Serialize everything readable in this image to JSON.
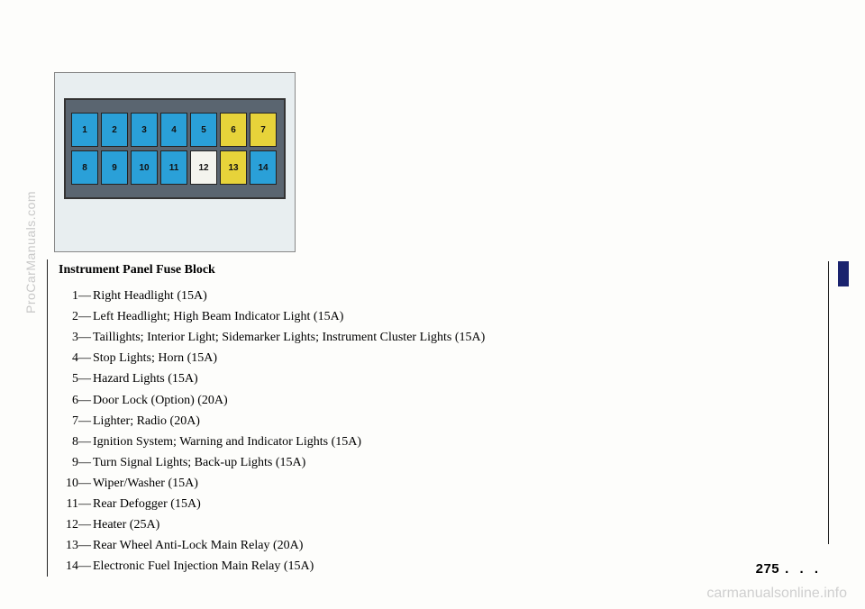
{
  "watermarks": {
    "left": "ProCarManuals.com",
    "bottom": "carmanualsonline.info"
  },
  "pageNumber": "275",
  "pageDots": ". . .",
  "heading": "Instrument Panel Fuse Block",
  "fuses": [
    {
      "n": "1",
      "desc": "Right Headlight (15A)"
    },
    {
      "n": "2",
      "desc": "Left Headlight; High Beam Indicator Light (15A)"
    },
    {
      "n": "3",
      "desc": "Taillights; Interior Light; Sidemarker Lights; Instrument Cluster Lights (15A)"
    },
    {
      "n": "4",
      "desc": "Stop Lights; Horn (15A)"
    },
    {
      "n": "5",
      "desc": "Hazard Lights (15A)"
    },
    {
      "n": "6",
      "desc": "Door Lock (Option) (20A)"
    },
    {
      "n": "7",
      "desc": "Lighter; Radio (20A)"
    },
    {
      "n": "8",
      "desc": "Ignition System; Warning and Indicator Lights (15A)"
    },
    {
      "n": "9",
      "desc": "Turn Signal Lights; Back-up Lights (15A)"
    },
    {
      "n": "10",
      "desc": "Wiper/Washer (15A)"
    },
    {
      "n": "11",
      "desc": "Rear Defogger (15A)"
    },
    {
      "n": "12",
      "desc": "Heater (25A)"
    },
    {
      "n": "13",
      "desc": "Rear Wheel Anti-Lock Main Relay (20A)"
    },
    {
      "n": "14",
      "desc": "Electronic Fuel Injection Main Relay (15A)"
    }
  ],
  "diagram": {
    "rows": [
      [
        {
          "label": "1",
          "color": "#2aa0d8"
        },
        {
          "label": "2",
          "color": "#2aa0d8"
        },
        {
          "label": "3",
          "color": "#2aa0d8"
        },
        {
          "label": "4",
          "color": "#2aa0d8"
        },
        {
          "label": "5",
          "color": "#2aa0d8"
        },
        {
          "label": "6",
          "color": "#e7d33a"
        },
        {
          "label": "7",
          "color": "#e7d33a"
        }
      ],
      [
        {
          "label": "8",
          "color": "#2aa0d8"
        },
        {
          "label": "9",
          "color": "#2aa0d8"
        },
        {
          "label": "10",
          "color": "#2aa0d8"
        },
        {
          "label": "11",
          "color": "#2aa0d8"
        },
        {
          "label": "12",
          "color": "#f4f4ee"
        },
        {
          "label": "13",
          "color": "#e7d33a"
        },
        {
          "label": "14",
          "color": "#2aa0d8"
        }
      ]
    ]
  }
}
